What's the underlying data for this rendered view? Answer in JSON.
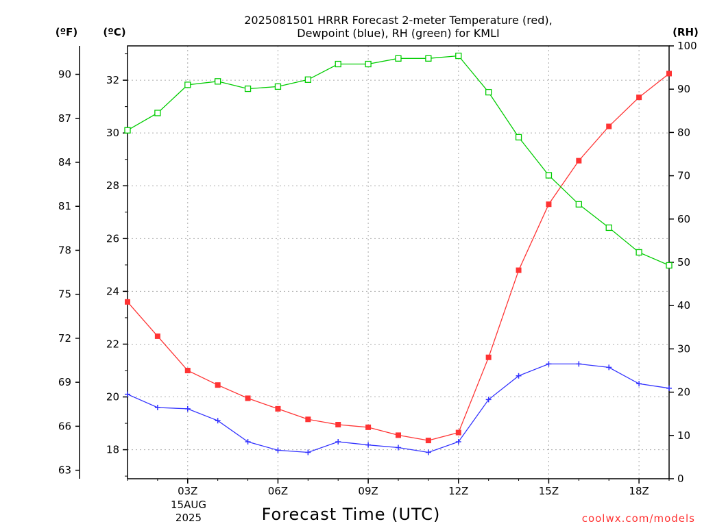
{
  "chart_data": {
    "type": "line",
    "title_line1": "2025081501 HRRR Forecast 2-meter Temperature (red),",
    "title_line2": "Dewpoint (blue), RH (green) for KMLI",
    "xlabel": "Forecast Time (UTC)",
    "x_date_line1": "15AUG",
    "x_date_line2": "2025",
    "credit": "coolwx.com/models",
    "units": {
      "fahrenheit": "(ºF)",
      "celsius": "(ºC)",
      "rh": "(RH)"
    },
    "x_hours": [
      1,
      2,
      3,
      4,
      5,
      6,
      7,
      8,
      9,
      10,
      11,
      12,
      13,
      14,
      15,
      16,
      17,
      18,
      19
    ],
    "x_ticks": [
      {
        "hour": 3,
        "label": "03Z"
      },
      {
        "hour": 6,
        "label": "06Z"
      },
      {
        "hour": 9,
        "label": "09Z"
      },
      {
        "hour": 12,
        "label": "12Z"
      },
      {
        "hour": 15,
        "label": "15Z"
      },
      {
        "hour": 18,
        "label": "18Z"
      }
    ],
    "xlim": [
      1,
      19
    ],
    "celsius_axis": {
      "ylim": [
        16.9,
        33.3
      ],
      "ticks": [
        "18",
        "20",
        "22",
        "24",
        "26",
        "28",
        "30",
        "32"
      ]
    },
    "fahrenheit_axis": {
      "ticks": [
        "63",
        "66",
        "69",
        "72",
        "75",
        "78",
        "81",
        "84",
        "87",
        "90"
      ]
    },
    "rh_axis": {
      "ylim": [
        0,
        100
      ],
      "ticks": [
        "0",
        "10",
        "20",
        "30",
        "40",
        "50",
        "60",
        "70",
        "80",
        "90",
        "100"
      ]
    },
    "grid": true,
    "series": [
      {
        "name": "Temperature",
        "axis": "celsius",
        "color": "#ff3333",
        "marker": "filled-square",
        "values": [
          23.6,
          22.3,
          21.0,
          20.45,
          19.95,
          19.55,
          19.15,
          18.95,
          18.85,
          18.55,
          18.35,
          18.65,
          21.5,
          24.8,
          27.3,
          28.95,
          30.25,
          31.35,
          32.25
        ]
      },
      {
        "name": "Dewpoint",
        "axis": "celsius",
        "color": "#3333ff",
        "marker": "plus",
        "values": [
          20.1,
          19.6,
          19.55,
          19.1,
          18.3,
          17.98,
          17.9,
          18.3,
          18.18,
          18.08,
          17.9,
          18.3,
          19.9,
          20.8,
          21.25,
          21.25,
          21.12,
          20.5,
          20.33
        ]
      },
      {
        "name": "RH",
        "axis": "rh",
        "color": "#00cc00",
        "marker": "open-square",
        "values": [
          80.5,
          84.5,
          91.0,
          91.8,
          90.1,
          90.6,
          92.2,
          95.8,
          95.8,
          97.1,
          97.1,
          97.7,
          89.3,
          78.9,
          70.1,
          63.4,
          58.0,
          52.3,
          49.3
        ]
      }
    ]
  }
}
